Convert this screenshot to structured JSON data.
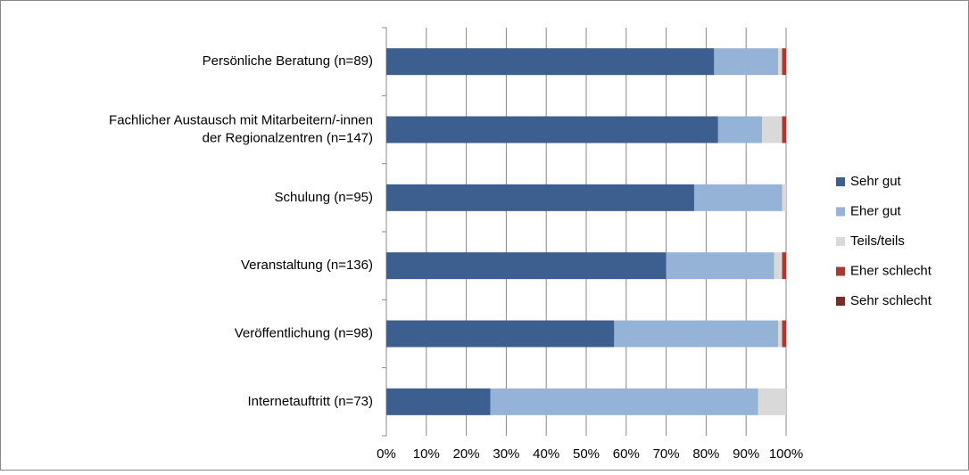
{
  "chart_data": {
    "type": "stacked-barh",
    "categories": [
      "Persönliche Beratung (n=89)",
      [
        "Fachlicher Austausch mit Mitarbeitern/-innen",
        "der Regionalzentren (n=147)"
      ],
      "Schulung (n=95)",
      "Veranstaltung (n=136)",
      "Veröffentlichung (n=98)",
      "Internetauftritt (n=73)"
    ],
    "series": [
      {
        "name": "Sehr gut",
        "color": "#3c5f8f",
        "values": [
          82,
          83,
          77,
          70,
          57,
          26
        ]
      },
      {
        "name": "Eher gut",
        "color": "#95b3d7",
        "values": [
          16,
          11,
          22,
          27,
          41,
          67
        ]
      },
      {
        "name": "Teils/teils",
        "color": "#d9d9d9",
        "values": [
          1,
          5,
          1,
          2,
          1,
          7
        ]
      },
      {
        "name": "Eher schlecht",
        "color": "#a83a32",
        "values": [
          1,
          1,
          0,
          1,
          1,
          0
        ]
      },
      {
        "name": "Sehr schlecht",
        "color": "#7b2a26",
        "values": [
          0,
          0,
          0,
          0,
          0,
          0
        ]
      }
    ],
    "xlim": [
      0,
      100
    ],
    "xticks": [
      {
        "value": 0,
        "label": "0%"
      },
      {
        "value": 10,
        "label": "10%"
      },
      {
        "value": 20,
        "label": "20%"
      },
      {
        "value": 30,
        "label": "30%"
      },
      {
        "value": 40,
        "label": "40%"
      },
      {
        "value": 50,
        "label": "50%"
      },
      {
        "value": 60,
        "label": "60%"
      },
      {
        "value": 70,
        "label": "70%"
      },
      {
        "value": 80,
        "label": "80%"
      },
      {
        "value": 90,
        "label": "90%"
      },
      {
        "value": 100,
        "label": "100%"
      }
    ],
    "grid": true,
    "legend": "right"
  }
}
